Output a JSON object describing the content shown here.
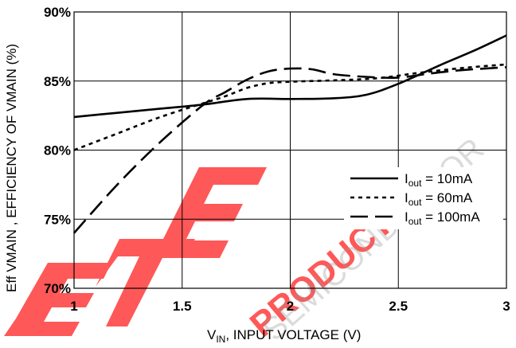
{
  "chart_data": {
    "type": "line",
    "xlabel": {
      "main": "V",
      "sub": "IN",
      "rest": ", INPUT VOLTAGE (V)"
    },
    "ylabel": "Eff VMAIN , EFFICIENCY OF VMAIN (%)",
    "xlim": [
      1,
      3
    ],
    "ylim": [
      70,
      90
    ],
    "x_ticks": [
      {
        "value": 1,
        "label": "1"
      },
      {
        "value": 1.5,
        "label": "1.5"
      },
      {
        "value": 2,
        "label": "2"
      },
      {
        "value": 2.5,
        "label": "2.5"
      },
      {
        "value": 3,
        "label": "3"
      }
    ],
    "y_ticks": [
      {
        "value": 70,
        "label": "70%"
      },
      {
        "value": 75,
        "label": "75%"
      },
      {
        "value": 80,
        "label": "80%"
      },
      {
        "value": 85,
        "label": "85%"
      },
      {
        "value": 90,
        "label": "90%"
      }
    ],
    "grid": true,
    "legend_position": "right",
    "series": [
      {
        "name": "Iout = 10mA",
        "legend": {
          "main": "I",
          "sub": "out",
          "rest": " = 10mA"
        },
        "style": "solid",
        "x": [
          1.0,
          1.2,
          1.4,
          1.6,
          1.8,
          2.0,
          2.2,
          2.35,
          2.5,
          2.7,
          2.85,
          3.0
        ],
        "y": [
          82.4,
          82.7,
          83.0,
          83.3,
          83.7,
          83.7,
          83.75,
          84.0,
          84.8,
          86.2,
          87.2,
          88.3
        ]
      },
      {
        "name": "Iout = 60mA",
        "legend": {
          "main": "I",
          "sub": "out",
          "rest": " = 60mA"
        },
        "style": "dotted",
        "x": [
          1.0,
          1.2,
          1.4,
          1.6,
          1.7,
          1.8,
          1.9,
          2.0,
          2.2,
          2.4,
          2.6,
          2.8,
          3.0
        ],
        "y": [
          80.0,
          81.2,
          82.4,
          83.4,
          83.9,
          84.5,
          84.85,
          84.95,
          85.05,
          85.2,
          85.6,
          85.95,
          86.2
        ]
      },
      {
        "name": "Iout = 100mA",
        "legend": {
          "main": "I",
          "sub": "out",
          "rest": " = 100mA"
        },
        "style": "long-dash",
        "x": [
          1.0,
          1.2,
          1.4,
          1.6,
          1.7,
          1.8,
          1.9,
          2.0,
          2.1,
          2.2,
          2.35,
          2.5,
          2.65,
          2.8,
          3.0
        ],
        "y": [
          74.0,
          77.5,
          80.6,
          83.3,
          84.2,
          85.1,
          85.7,
          85.9,
          85.85,
          85.5,
          85.3,
          85.25,
          85.55,
          85.8,
          86.0
        ]
      }
    ]
  },
  "watermark": {
    "color": "#ff4a4a",
    "text": "PRODUCTION",
    "arc_text": "SEMICONDUCTOR"
  }
}
